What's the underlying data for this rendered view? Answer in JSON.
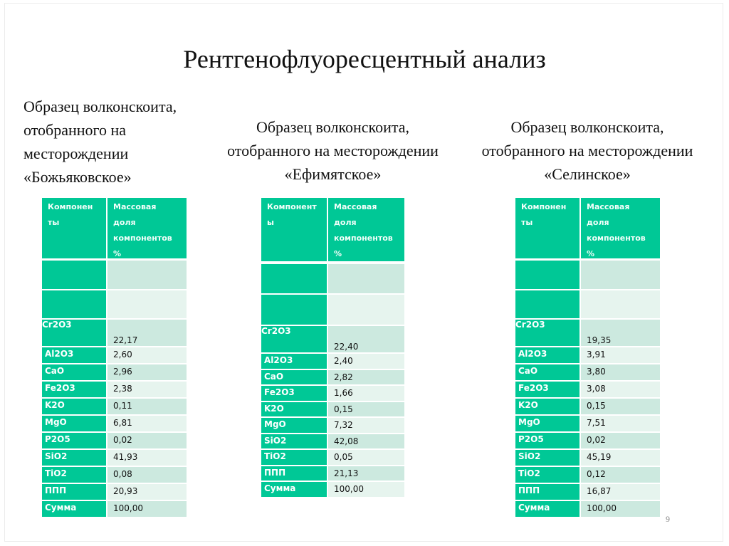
{
  "slide": {
    "title": "Рентгенофлуоресцентный анализ",
    "page_number": "9",
    "colors": {
      "header_green": "#00c896",
      "cell_light": "#cce9df",
      "cell_lighter": "#e6f4ee"
    }
  },
  "samples": [
    {
      "caption_lines": [
        "Образец волконскоита,",
        "отобранного на",
        "месторождении",
        "«Божьяковское»"
      ],
      "header": {
        "col1": [
          "Компонен",
          "ты"
        ],
        "col2": [
          "Массовая",
          "доля",
          "компонентов",
          "%"
        ]
      },
      "rows": [
        {
          "component": "",
          "value": ""
        },
        {
          "component": "",
          "value": ""
        },
        {
          "component": "Cr2O3",
          "value": "22,17"
        },
        {
          "component": "Al2O3",
          "value": "2,60"
        },
        {
          "component": "CaO",
          "value": "2,96"
        },
        {
          "component": "Fe2O3",
          "value": "2,38"
        },
        {
          "component": "K2O",
          "value": "0,11"
        },
        {
          "component": "MgO",
          "value": "6,81"
        },
        {
          "component": "P2O5",
          "value": "0,02"
        },
        {
          "component": "SiO2",
          "value": "41,93"
        },
        {
          "component": "TiO2",
          "value": "0,08"
        },
        {
          "component": "ППП",
          "value": "20,93"
        },
        {
          "component": "Сумма",
          "value": "100,00"
        }
      ]
    },
    {
      "caption_lines": [
        "Образец волконскоита,",
        "отобранного на месторождении",
        "«Ефимятское»"
      ],
      "header": {
        "col1": [
          "Компонент",
          "ы"
        ],
        "col2": [
          "Массовая",
          "доля",
          "компонентов",
          "%"
        ]
      },
      "rows": [
        {
          "component": "",
          "value": ""
        },
        {
          "component": "",
          "value": ""
        },
        {
          "component": "Cr2O3",
          "value": "22,40"
        },
        {
          "component": "Al2O3",
          "value": "2,40"
        },
        {
          "component": "CaO",
          "value": "2,82"
        },
        {
          "component": "Fe2O3",
          "value": "1,66"
        },
        {
          "component": "K2O",
          "value": "0,15"
        },
        {
          "component": "MgO",
          "value": "7,32"
        },
        {
          "component": "SiO2",
          "value": "42,08"
        },
        {
          "component": "TiO2",
          "value": "0,05"
        },
        {
          "component": "ППП",
          "value": "21,13"
        },
        {
          "component": "Сумма",
          "value": "100,00"
        }
      ]
    },
    {
      "caption_lines": [
        "Образец волконскоита,",
        "отобранного на месторождении",
        "«Селинское»"
      ],
      "header": {
        "col1": [
          "Компонен",
          "ты"
        ],
        "col2": [
          "Массовая",
          "доля",
          "компонентов",
          "%"
        ]
      },
      "rows": [
        {
          "component": "",
          "value": ""
        },
        {
          "component": "",
          "value": ""
        },
        {
          "component": "Cr2O3",
          "value": "19,35"
        },
        {
          "component": "Al2O3",
          "value": "3,91"
        },
        {
          "component": "CaO",
          "value": "3,80"
        },
        {
          "component": "Fe2O3",
          "value": "3,08"
        },
        {
          "component": "K2O",
          "value": "0,15"
        },
        {
          "component": "MgO",
          "value": "7,51"
        },
        {
          "component": "P2O5",
          "value": "0,02"
        },
        {
          "component": "SiO2",
          "value": "45,19"
        },
        {
          "component": "TiO2",
          "value": "0,12"
        },
        {
          "component": "ППП",
          "value": "16,87"
        },
        {
          "component": "Сумма",
          "value": "100,00"
        }
      ]
    }
  ]
}
